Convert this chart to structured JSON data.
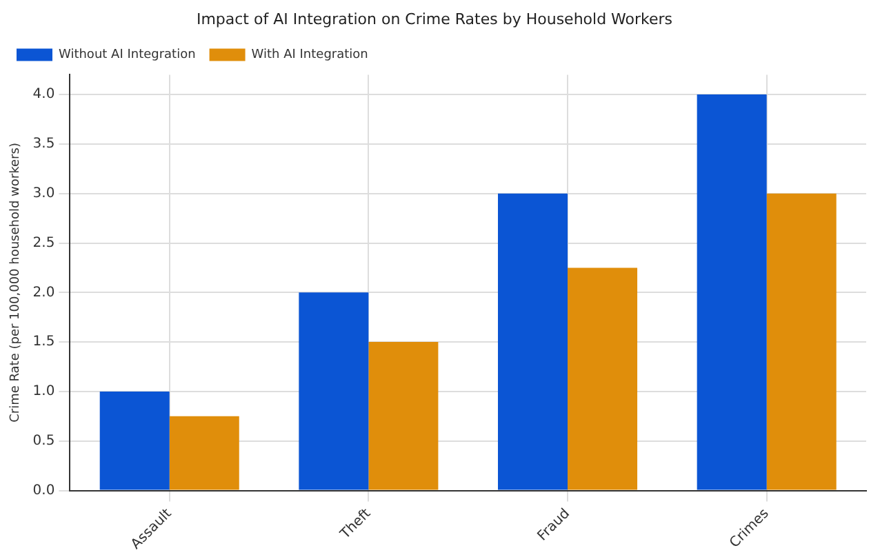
{
  "chart_data": {
    "type": "bar",
    "title": "Impact of AI Integration on Crime Rates by Household Workers",
    "ylabel": "Crime Rate (per 100,000 household workers)",
    "categories": [
      "Assault",
      "Theft",
      "Fraud",
      "Crimes"
    ],
    "series": [
      {
        "name": "Without AI Integration",
        "color": "#0b55d4",
        "values": [
          1,
          2,
          3,
          4
        ]
      },
      {
        "name": "With AI Integration",
        "color": "#e08e0b",
        "values": [
          0.75,
          1.5,
          2.25,
          3
        ]
      }
    ],
    "ylim": [
      0,
      4.2
    ],
    "yticks": [
      {
        "value": 0,
        "label": "0.0"
      },
      0.5,
      {
        "value": 1,
        "label": "1.0"
      },
      1.5,
      {
        "value": 2,
        "label": "2.0"
      },
      2.5,
      {
        "value": 3,
        "label": "3.0"
      },
      3.5,
      {
        "value": 4,
        "label": "4.0"
      }
    ],
    "grid": true,
    "legend": "top left"
  }
}
